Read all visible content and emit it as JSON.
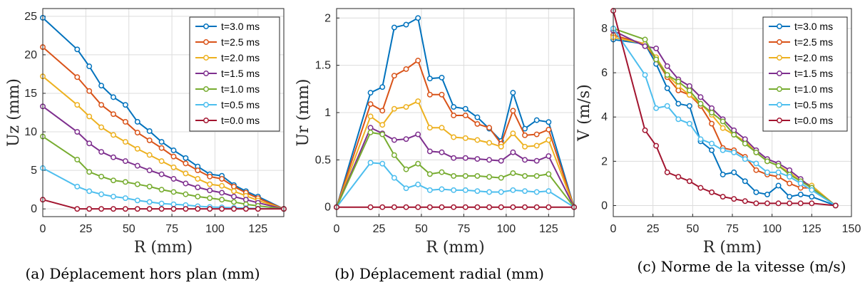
{
  "colors": [
    "#0072BD",
    "#D95319",
    "#EDB120",
    "#7E2F8E",
    "#77AC30",
    "#4DBEEE",
    "#A2142F"
  ],
  "legend_labels": [
    "t=3.0 ms",
    "t=2.5 ms",
    "t=2.0 ms",
    "t=1.5 ms",
    "t=1.0 ms",
    "t=0.5 ms",
    "t=0.0 ms"
  ],
  "chart_data": [
    {
      "type": "line",
      "caption": "(a) Déplacement hors plan (mm)",
      "xlabel": "R (mm)",
      "ylabel": "Uz (mm)",
      "xlim": [
        0,
        140
      ],
      "ylim": [
        -1,
        26
      ],
      "xticks": [
        0,
        25,
        50,
        75,
        100,
        125
      ],
      "yticks": [
        0,
        5,
        10,
        15,
        20,
        25
      ],
      "grid": true,
      "legend_position": "top-right",
      "x": [
        0,
        20,
        27,
        34,
        41,
        48,
        55,
        62,
        69,
        76,
        83,
        90,
        97,
        104,
        111,
        118,
        125,
        140
      ],
      "series": [
        {
          "name": "t=3.0 ms",
          "values": [
            24.8,
            20.7,
            18.5,
            16.0,
            14.5,
            13.5,
            11.3,
            10.1,
            8.7,
            7.6,
            6.6,
            5.5,
            4.5,
            4.3,
            3.1,
            2.3,
            1.6,
            0
          ]
        },
        {
          "name": "t=2.5 ms",
          "values": [
            21.0,
            17.1,
            15.3,
            13.5,
            12.3,
            11.3,
            9.9,
            8.9,
            7.9,
            6.8,
            5.9,
            5.0,
            4.2,
            3.9,
            2.9,
            2.1,
            1.4,
            0
          ]
        },
        {
          "name": "t=2.0 ms",
          "values": [
            17.2,
            13.5,
            12.0,
            10.6,
            9.6,
            8.7,
            7.8,
            7.0,
            6.2,
            5.4,
            4.6,
            3.9,
            3.2,
            3.0,
            2.3,
            1.7,
            1.1,
            0
          ]
        },
        {
          "name": "t=1.5 ms",
          "values": [
            13.3,
            10.0,
            8.5,
            7.4,
            6.7,
            6.2,
            5.6,
            5.0,
            4.5,
            3.9,
            3.3,
            2.8,
            2.4,
            2.1,
            1.6,
            1.2,
            0.8,
            0
          ]
        },
        {
          "name": "t=1.0 ms",
          "values": [
            9.4,
            6.4,
            4.8,
            4.2,
            3.7,
            3.5,
            3.2,
            2.9,
            2.5,
            2.2,
            1.9,
            1.6,
            1.4,
            1.2,
            0.9,
            0.6,
            0.4,
            0
          ]
        },
        {
          "name": "t=0.5 ms",
          "values": [
            5.3,
            2.9,
            2.3,
            1.9,
            1.6,
            1.4,
            1.1,
            0.9,
            0.7,
            0.6,
            0.5,
            0.35,
            0.25,
            0.2,
            0.15,
            0.1,
            0.05,
            0
          ]
        },
        {
          "name": "t=0.0 ms",
          "values": [
            1.2,
            0,
            0,
            0,
            0,
            0,
            0,
            0,
            0,
            0,
            0,
            0,
            0,
            0,
            0,
            0,
            0,
            0
          ]
        }
      ]
    },
    {
      "type": "line",
      "caption": "(b) Déplacement radial (mm)",
      "xlabel": "R (mm)",
      "ylabel": "Ur (mm)",
      "xlim": [
        0,
        140
      ],
      "ylim": [
        -0.1,
        2.1
      ],
      "xticks": [
        0,
        25,
        50,
        75,
        100,
        125
      ],
      "yticks": [
        0,
        0.5,
        1,
        1.5,
        2
      ],
      "grid": true,
      "legend_position": "none",
      "x": [
        0,
        20,
        27,
        34,
        41,
        48,
        55,
        62,
        69,
        76,
        83,
        90,
        97,
        104,
        111,
        118,
        125,
        140
      ],
      "series": [
        {
          "name": "t=3.0 ms",
          "values": [
            0,
            1.21,
            1.27,
            1.9,
            1.93,
            2.0,
            1.36,
            1.37,
            1.06,
            1.04,
            0.95,
            0.83,
            0.7,
            1.21,
            0.83,
            0.92,
            0.9,
            0
          ]
        },
        {
          "name": "t=2.5 ms",
          "values": [
            0,
            1.09,
            1.02,
            1.39,
            1.46,
            1.55,
            1.19,
            1.19,
            0.97,
            0.97,
            0.88,
            0.84,
            0.67,
            1.02,
            0.76,
            0.77,
            0.82,
            0
          ]
        },
        {
          "name": "t=2.0 ms",
          "values": [
            0,
            0.96,
            0.87,
            1.04,
            1.06,
            1.12,
            0.84,
            0.84,
            0.74,
            0.73,
            0.71,
            0.68,
            0.64,
            0.78,
            0.64,
            0.65,
            0.71,
            0
          ]
        },
        {
          "name": "t=1.5 ms",
          "values": [
            0,
            0.84,
            0.78,
            0.71,
            0.72,
            0.77,
            0.59,
            0.58,
            0.52,
            0.52,
            0.51,
            0.5,
            0.49,
            0.58,
            0.5,
            0.49,
            0.54,
            0
          ]
        },
        {
          "name": "t=1.0 ms",
          "values": [
            0,
            0.79,
            0.77,
            0.55,
            0.4,
            0.46,
            0.35,
            0.37,
            0.33,
            0.33,
            0.33,
            0.32,
            0.31,
            0.36,
            0.33,
            0.33,
            0.35,
            0
          ]
        },
        {
          "name": "t=0.5 ms",
          "values": [
            0,
            0.47,
            0.46,
            0.31,
            0.2,
            0.24,
            0.18,
            0.19,
            0.18,
            0.18,
            0.17,
            0.16,
            0.16,
            0.18,
            0.17,
            0.16,
            0.17,
            0
          ]
        },
        {
          "name": "t=0.0 ms",
          "values": [
            0,
            0,
            0,
            0,
            0,
            0,
            0,
            0,
            0,
            0,
            0,
            0,
            0,
            0,
            0,
            0,
            0,
            0
          ]
        }
      ]
    },
    {
      "type": "line",
      "caption": "(c) Norme de la vitesse (m/s)",
      "xlabel": "R (mm)",
      "ylabel": "V (m/s)",
      "xlim": [
        0,
        150
      ],
      "ylim": [
        -0.5,
        8.9
      ],
      "xticks": [
        0,
        25,
        50,
        75,
        100,
        125,
        150
      ],
      "yticks": [
        0,
        2,
        4,
        6,
        8
      ],
      "grid": true,
      "legend_position": "top-right",
      "x": [
        0,
        20,
        27,
        34,
        41,
        48,
        55,
        62,
        69,
        76,
        83,
        90,
        97,
        104,
        111,
        118,
        125,
        140
      ],
      "series": [
        {
          "name": "t=3.0 ms",
          "values": [
            7.5,
            7.3,
            6.4,
            5.3,
            4.6,
            4.5,
            2.9,
            2.5,
            1.4,
            1.5,
            1.1,
            0.6,
            0.5,
            0.9,
            0.4,
            0.5,
            0.4,
            0
          ]
        },
        {
          "name": "t=2.5 ms",
          "values": [
            7.7,
            7.3,
            6.6,
            5.8,
            5.2,
            5.0,
            4.5,
            3.7,
            2.6,
            2.5,
            2.2,
            1.6,
            1.4,
            1.3,
            1.0,
            0.8,
            0.8,
            0
          ]
        },
        {
          "name": "t=2.0 ms",
          "values": [
            7.6,
            7.3,
            6.7,
            5.9,
            5.4,
            5.0,
            4.6,
            4.1,
            3.5,
            3.2,
            2.9,
            2.4,
            2.0,
            1.8,
            1.5,
            1.1,
            0.9,
            0
          ]
        },
        {
          "name": "t=1.5 ms",
          "values": [
            7.9,
            7.2,
            7.1,
            6.3,
            5.7,
            5.4,
            4.9,
            4.4,
            3.9,
            3.4,
            3.0,
            2.5,
            2.1,
            1.9,
            1.6,
            1.2,
            0.8,
            0
          ]
        },
        {
          "name": "t=1.0 ms",
          "values": [
            8.0,
            7.5,
            6.6,
            5.9,
            5.6,
            5.2,
            4.6,
            4.2,
            3.8,
            3.2,
            2.8,
            2.4,
            2.0,
            1.8,
            1.4,
            1.1,
            0.8,
            0
          ]
        },
        {
          "name": "t=0.5 ms",
          "values": [
            8.0,
            5.9,
            4.4,
            4.5,
            3.9,
            3.7,
            3.0,
            2.8,
            2.5,
            2.4,
            2.1,
            1.9,
            1.5,
            1.5,
            1.3,
            1.0,
            0.7,
            0
          ]
        },
        {
          "name": "t=0.0 ms",
          "values": [
            8.8,
            3.4,
            2.7,
            1.5,
            1.3,
            1.1,
            0.8,
            0.6,
            0.4,
            0.3,
            0.2,
            0.1,
            0.1,
            0.1,
            0.1,
            0.1,
            0.1,
            0
          ]
        }
      ]
    }
  ]
}
